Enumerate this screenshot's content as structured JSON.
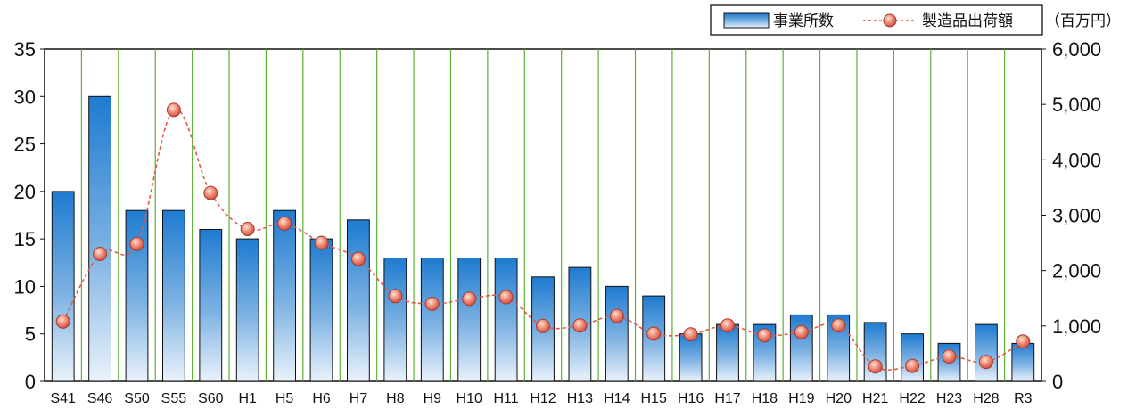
{
  "chart_data": {
    "type": "bar",
    "categories": [
      "S41",
      "S46",
      "S50",
      "S55",
      "S60",
      "H1",
      "H5",
      "H6",
      "H7",
      "H8",
      "H9",
      "H10",
      "H11",
      "H12",
      "H13",
      "H14",
      "H15",
      "H16",
      "H17",
      "H18",
      "H19",
      "H20",
      "H21",
      "H22",
      "H23",
      "H28",
      "R3"
    ],
    "series": [
      {
        "name": "事業所数",
        "type": "bar",
        "axis": "left",
        "values": [
          20,
          30,
          18,
          18,
          16,
          15,
          18,
          15,
          17,
          13,
          13,
          13,
          13,
          11,
          12,
          10,
          9,
          5,
          6,
          6,
          7,
          7,
          6.2,
          5,
          4,
          6,
          4
        ]
      },
      {
        "name": "製造品出荷額",
        "type": "line",
        "axis": "right",
        "values": [
          1080,
          2300,
          2480,
          4900,
          3400,
          2750,
          2850,
          2500,
          2210,
          1540,
          1400,
          1490,
          1520,
          1000,
          1010,
          1180,
          860,
          850,
          1010,
          830,
          890,
          1010,
          270,
          280,
          450,
          350,
          720
        ]
      }
    ],
    "y_left": {
      "min": 0,
      "max": 35,
      "ticks": [
        "0",
        "5",
        "10",
        "15",
        "20",
        "25",
        "30",
        "35"
      ]
    },
    "y_right": {
      "min": 0,
      "max": 6000,
      "ticks": [
        "0",
        "1,000",
        "2,000",
        "3,000",
        "4,000",
        "5,000",
        "6,000"
      ]
    },
    "right_unit": "（百万円）",
    "legend_position": "top-right",
    "grid": "vertical",
    "colors": {
      "bar_top": "#1e7bd0",
      "bar_bottom": "#e8f1fa",
      "bar_stroke": "#111111",
      "line": "#e05a4a",
      "marker": "#e8705e",
      "grid": "#5cb034"
    }
  }
}
